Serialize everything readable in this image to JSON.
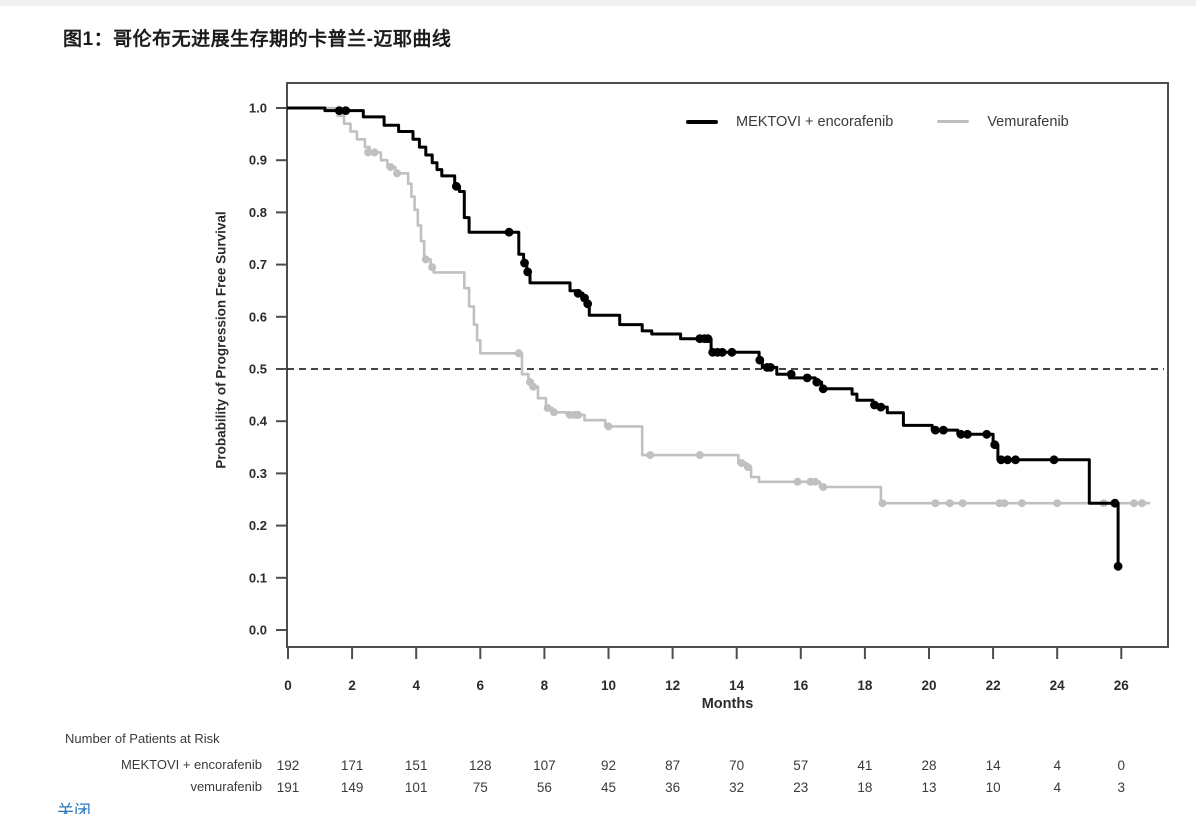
{
  "page": {
    "title": "图1：哥伦布无进展生存期的卡普兰-迈耶曲线",
    "footer_link": "关闭"
  },
  "colors": {
    "series_black": "#000000",
    "series_gray": "#c0c0c0",
    "legend_gray_swatch": "#bdbdbd",
    "frame": "#4d4d4d",
    "tick_label": "#2b2b2b",
    "risk_text": "#3a3a3a",
    "reference_line": "#2b2b2b",
    "footer_link_blue": "#2878be"
  },
  "chart_data": {
    "type": "line",
    "subtype": "kaplan-meier-step",
    "title": "图1：哥伦布无进展生存期的卡普兰-迈耶曲线",
    "xlabel": "Months",
    "ylabel": "Probability of Progression Free Survival",
    "xlim": [
      0,
      27.3
    ],
    "ylim": [
      0,
      1.0
    ],
    "xticks": [
      0,
      2,
      4,
      6,
      8,
      10,
      12,
      14,
      16,
      18,
      20,
      22,
      24,
      26
    ],
    "yticks": [
      0.0,
      0.1,
      0.2,
      0.3,
      0.4,
      0.5,
      0.6,
      0.7,
      0.8,
      0.9,
      1.0
    ],
    "grid": false,
    "reference_line": {
      "y": 0.5,
      "style": "dashed"
    },
    "legend_position": "top-right-inside",
    "series": [
      {
        "name": "MEKTOVI + encorafenib",
        "color": "#000000",
        "line_width": 3,
        "end": 25.9,
        "steps": [
          [
            0,
            1.0
          ],
          [
            1.15,
            0.995
          ],
          [
            2.35,
            0.983
          ],
          [
            3.0,
            0.967
          ],
          [
            3.45,
            0.955
          ],
          [
            3.9,
            0.94
          ],
          [
            4.1,
            0.925
          ],
          [
            4.3,
            0.91
          ],
          [
            4.5,
            0.895
          ],
          [
            4.65,
            0.882
          ],
          [
            4.8,
            0.87
          ],
          [
            5.2,
            0.85
          ],
          [
            5.35,
            0.84
          ],
          [
            5.5,
            0.79
          ],
          [
            5.65,
            0.762
          ],
          [
            7.2,
            0.72
          ],
          [
            7.35,
            0.703
          ],
          [
            7.45,
            0.686
          ],
          [
            7.55,
            0.665
          ],
          [
            8.8,
            0.65
          ],
          [
            9.0,
            0.645
          ],
          [
            9.2,
            0.636
          ],
          [
            9.3,
            0.625
          ],
          [
            9.4,
            0.603
          ],
          [
            10.35,
            0.585
          ],
          [
            11.05,
            0.573
          ],
          [
            11.35,
            0.567
          ],
          [
            12.25,
            0.558
          ],
          [
            13.2,
            0.532
          ],
          [
            14.7,
            0.517
          ],
          [
            14.8,
            0.503
          ],
          [
            15.25,
            0.49
          ],
          [
            15.65,
            0.483
          ],
          [
            16.45,
            0.475
          ],
          [
            16.65,
            0.462
          ],
          [
            17.6,
            0.452
          ],
          [
            17.75,
            0.44
          ],
          [
            18.25,
            0.431
          ],
          [
            18.45,
            0.427
          ],
          [
            18.7,
            0.416
          ],
          [
            19.2,
            0.392
          ],
          [
            20.1,
            0.383
          ],
          [
            20.9,
            0.375
          ],
          [
            22.0,
            0.355
          ],
          [
            22.15,
            0.326
          ],
          [
            25.0,
            0.243
          ],
          [
            25.9,
            0.122
          ]
        ],
        "censor_marks": [
          [
            1.6,
            0.995
          ],
          [
            1.8,
            0.995
          ],
          [
            5.25,
            0.85
          ],
          [
            6.9,
            0.762
          ],
          [
            7.38,
            0.703
          ],
          [
            7.48,
            0.686
          ],
          [
            9.05,
            0.645
          ],
          [
            9.25,
            0.636
          ],
          [
            9.35,
            0.625
          ],
          [
            12.85,
            0.558
          ],
          [
            13.0,
            0.558
          ],
          [
            13.1,
            0.558
          ],
          [
            13.25,
            0.532
          ],
          [
            13.4,
            0.532
          ],
          [
            13.55,
            0.532
          ],
          [
            13.85,
            0.532
          ],
          [
            14.72,
            0.517
          ],
          [
            14.95,
            0.503
          ],
          [
            15.05,
            0.503
          ],
          [
            15.7,
            0.49
          ],
          [
            16.2,
            0.483
          ],
          [
            16.5,
            0.475
          ],
          [
            16.7,
            0.462
          ],
          [
            18.3,
            0.431
          ],
          [
            18.5,
            0.427
          ],
          [
            20.2,
            0.383
          ],
          [
            20.45,
            0.383
          ],
          [
            21.0,
            0.375
          ],
          [
            21.2,
            0.375
          ],
          [
            21.8,
            0.375
          ],
          [
            22.05,
            0.355
          ],
          [
            22.25,
            0.326
          ],
          [
            22.45,
            0.326
          ],
          [
            22.7,
            0.326
          ],
          [
            23.9,
            0.326
          ],
          [
            25.8,
            0.243
          ],
          [
            25.9,
            0.122
          ]
        ]
      },
      {
        "name": "Vemurafenib",
        "color": "#c0c0c0",
        "line_width": 2.6,
        "end": 26.9,
        "steps": [
          [
            0,
            1.0
          ],
          [
            1.55,
            0.985
          ],
          [
            1.75,
            0.97
          ],
          [
            1.95,
            0.955
          ],
          [
            2.15,
            0.94
          ],
          [
            2.4,
            0.925
          ],
          [
            2.55,
            0.915
          ],
          [
            2.9,
            0.9
          ],
          [
            3.1,
            0.887
          ],
          [
            3.35,
            0.875
          ],
          [
            3.75,
            0.855
          ],
          [
            3.85,
            0.83
          ],
          [
            3.95,
            0.805
          ],
          [
            4.05,
            0.775
          ],
          [
            4.15,
            0.745
          ],
          [
            4.25,
            0.71
          ],
          [
            4.45,
            0.695
          ],
          [
            4.55,
            0.685
          ],
          [
            5.5,
            0.655
          ],
          [
            5.65,
            0.62
          ],
          [
            5.8,
            0.585
          ],
          [
            5.9,
            0.555
          ],
          [
            6.0,
            0.53
          ],
          [
            7.3,
            0.49
          ],
          [
            7.5,
            0.475
          ],
          [
            7.6,
            0.466
          ],
          [
            7.8,
            0.444
          ],
          [
            8.05,
            0.425
          ],
          [
            8.25,
            0.417
          ],
          [
            8.7,
            0.412
          ],
          [
            9.25,
            0.402
          ],
          [
            9.9,
            0.39
          ],
          [
            11.05,
            0.335
          ],
          [
            14.05,
            0.32
          ],
          [
            14.3,
            0.312
          ],
          [
            14.45,
            0.293
          ],
          [
            14.7,
            0.284
          ],
          [
            16.6,
            0.274
          ],
          [
            18.5,
            0.243
          ]
        ],
        "censor_marks": [
          [
            2.5,
            0.915
          ],
          [
            2.7,
            0.915
          ],
          [
            3.2,
            0.887
          ],
          [
            3.4,
            0.875
          ],
          [
            4.3,
            0.71
          ],
          [
            4.5,
            0.695
          ],
          [
            7.2,
            0.53
          ],
          [
            7.55,
            0.475
          ],
          [
            7.65,
            0.466
          ],
          [
            8.1,
            0.425
          ],
          [
            8.3,
            0.417
          ],
          [
            8.8,
            0.412
          ],
          [
            8.95,
            0.412
          ],
          [
            9.05,
            0.412
          ],
          [
            10.0,
            0.39
          ],
          [
            11.3,
            0.335
          ],
          [
            12.85,
            0.335
          ],
          [
            14.15,
            0.32
          ],
          [
            14.35,
            0.312
          ],
          [
            15.9,
            0.284
          ],
          [
            16.3,
            0.284
          ],
          [
            16.45,
            0.284
          ],
          [
            16.7,
            0.274
          ],
          [
            18.55,
            0.243
          ],
          [
            20.2,
            0.243
          ],
          [
            20.65,
            0.243
          ],
          [
            21.05,
            0.243
          ],
          [
            22.2,
            0.243
          ],
          [
            22.35,
            0.243
          ],
          [
            22.9,
            0.243
          ],
          [
            24.0,
            0.243
          ],
          [
            25.45,
            0.243
          ],
          [
            26.4,
            0.243
          ],
          [
            26.65,
            0.243
          ]
        ]
      }
    ],
    "risk_table": {
      "header": "Number of Patients at Risk",
      "time_points": [
        0,
        2,
        4,
        6,
        8,
        10,
        12,
        14,
        16,
        18,
        20,
        22,
        24,
        26
      ],
      "rows": [
        {
          "label": "MEKTOVI + encorafenib",
          "values": [
            192,
            171,
            151,
            128,
            107,
            92,
            87,
            70,
            57,
            41,
            28,
            14,
            4,
            0
          ]
        },
        {
          "label": "vemurafenib",
          "values": [
            191,
            149,
            101,
            75,
            56,
            45,
            36,
            32,
            23,
            18,
            13,
            10,
            4,
            3
          ]
        }
      ]
    }
  }
}
